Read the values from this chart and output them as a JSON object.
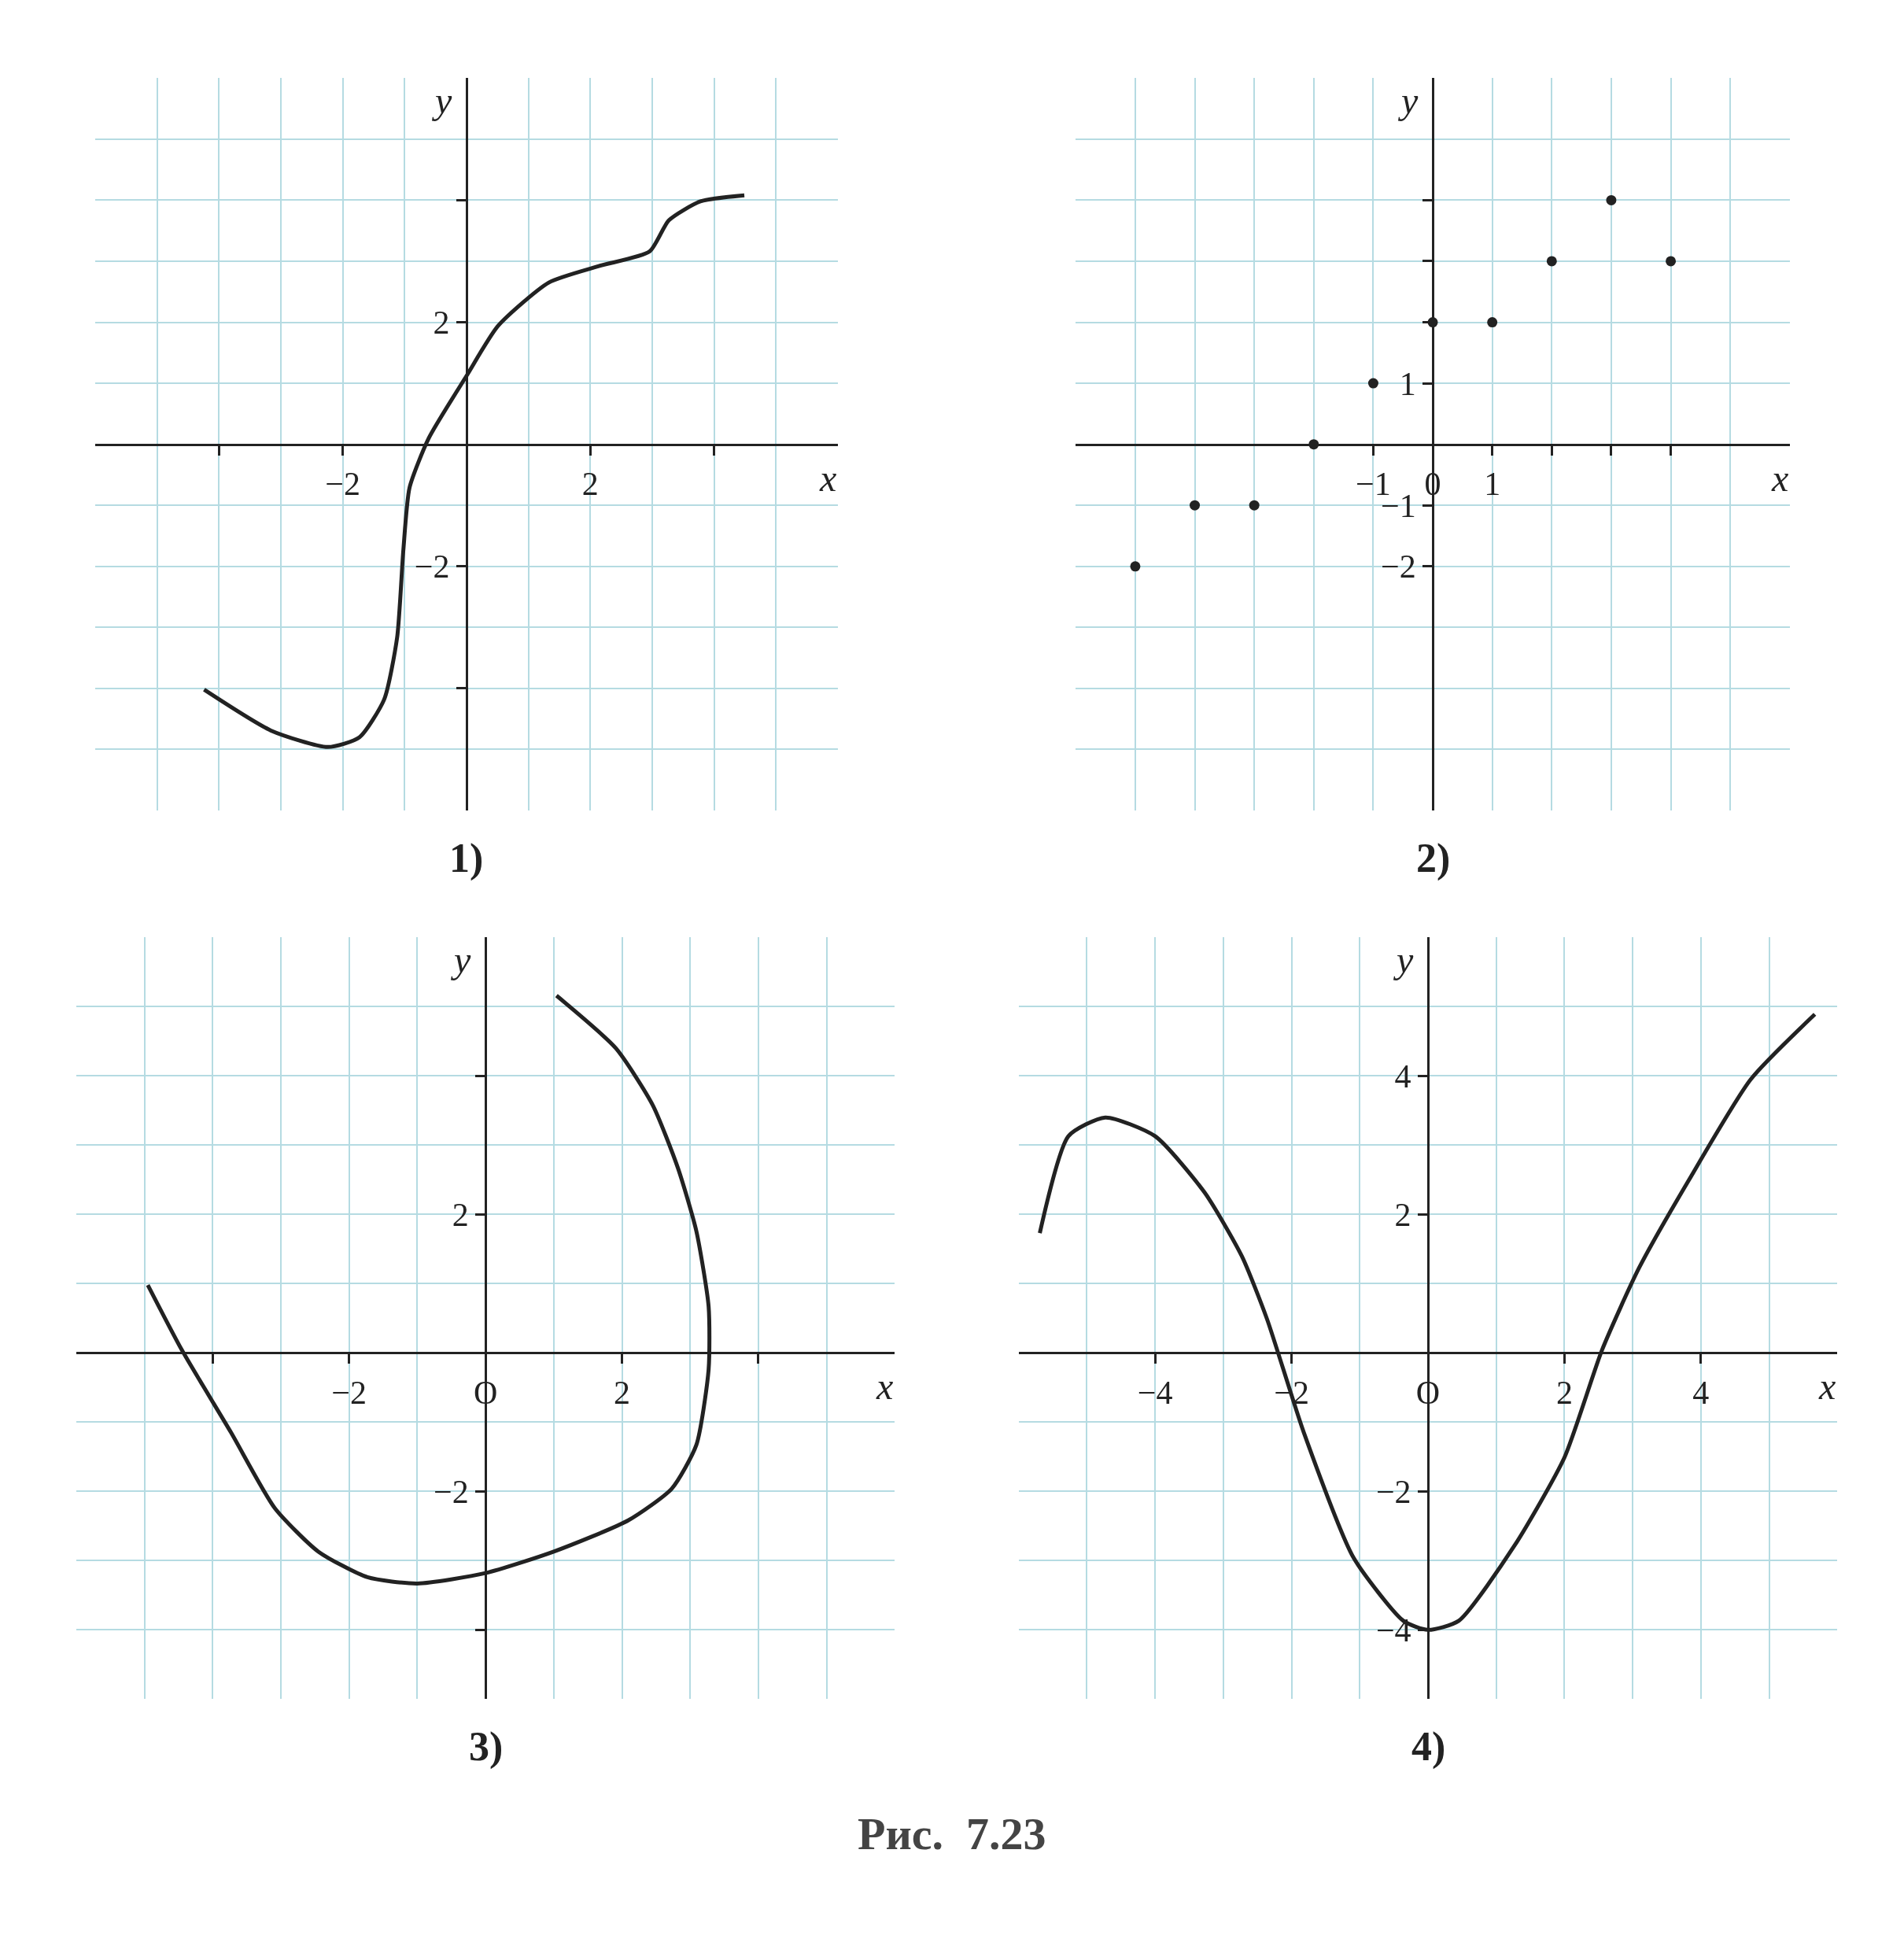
{
  "chart_data": [
    {
      "type": "line",
      "xlabel": "x",
      "ylabel": "y",
      "annotations": [
        "1)"
      ],
      "xlim": [
        -6,
        6
      ],
      "ylim": [
        -6,
        6
      ],
      "grid": true,
      "marker": "none",
      "line_style": "solid",
      "xticks": [
        {
          "value": -4,
          "label": null
        },
        -2,
        2,
        {
          "value": 4,
          "label": null
        }
      ],
      "yticks": [
        {
          "value": -4,
          "label": null
        },
        -2,
        2,
        {
          "value": 4,
          "label": null
        }
      ],
      "series": [
        {
          "color": "#222222",
          "x": [
            -4.24,
            -3.16,
            -2.24,
            -1.73,
            -1.33,
            -1.12,
            -1.02,
            -0.92,
            -0.61,
            0,
            0.51,
            1.33,
            2.14,
            2.96,
            3.27,
            3.78,
            4.49
          ],
          "values": [
            -4.02,
            -4.69,
            -4.96,
            -4.8,
            -4.18,
            -3.16,
            -1.73,
            -0.71,
            0.1,
            1.12,
            1.94,
            2.65,
            2.92,
            3.16,
            3.67,
            3.98,
            4.08
          ]
        }
      ]
    },
    {
      "type": "scatter",
      "xlabel": "x",
      "ylabel": "y",
      "annotations": [
        "2)"
      ],
      "xlim": [
        -6,
        6
      ],
      "ylim": [
        -6,
        6
      ],
      "grid": true,
      "marker": "circle",
      "xticks": [
        -1,
        {
          "value": 0,
          "label": "0"
        },
        1,
        {
          "value": 2,
          "label": null
        },
        {
          "value": 3,
          "label": null
        },
        {
          "value": 4,
          "label": null
        }
      ],
      "yticks": [
        -2,
        -1,
        1,
        {
          "value": 2,
          "label": null
        },
        {
          "value": 3,
          "label": null
        },
        {
          "value": 4,
          "label": null
        }
      ],
      "series": [
        {
          "color": "#222222",
          "x": [
            -5,
            -4,
            -3,
            -2,
            -1,
            0,
            1,
            2,
            3,
            4
          ],
          "values": [
            -2,
            -1,
            -1,
            0,
            1,
            2,
            2,
            3,
            4,
            3
          ]
        }
      ]
    },
    {
      "type": "line",
      "xlabel": "x",
      "ylabel": "y",
      "annotations": [
        "3)"
      ],
      "xlim": [
        -6,
        6
      ],
      "ylim": [
        -5,
        6
      ],
      "grid": true,
      "marker": "none",
      "line_style": "solid",
      "xticks": [
        {
          "value": -4,
          "label": null
        },
        -2,
        {
          "value": 0,
          "label": "O"
        },
        2,
        {
          "value": 4,
          "label": null
        }
      ],
      "yticks": [
        {
          "value": -4,
          "label": null
        },
        -2,
        2,
        {
          "value": 4,
          "label": null
        }
      ],
      "series": [
        {
          "color": "#222222",
          "x": [
            -4.95,
            -4.45,
            -3.73,
            -3.09,
            -2.45,
            -1.73,
            -1,
            0,
            1,
            2.09,
            2.73,
            3.09,
            3.27,
            3.27,
            3.09,
            2.82,
            2.45,
            1.91,
            1.04
          ],
          "values": [
            0.98,
            0.04,
            -1.15,
            -2.24,
            -2.87,
            -3.24,
            -3.33,
            -3.18,
            -2.87,
            -2.42,
            -1.96,
            -1.33,
            -0.24,
            0.67,
            1.76,
            2.67,
            3.58,
            4.4,
            5.16
          ]
        }
      ]
    },
    {
      "type": "line",
      "xlabel": "x",
      "ylabel": "y",
      "annotations": [
        "4)",
        "Рис.  7.23"
      ],
      "xlim": [
        -6,
        6
      ],
      "ylim": [
        -5,
        6
      ],
      "grid": true,
      "marker": "none",
      "line_style": "solid",
      "xticks": [
        -4,
        -2,
        {
          "value": 0,
          "label": "O"
        },
        2,
        4
      ],
      "yticks": [
        -4,
        -2,
        2,
        4
      ],
      "series": [
        {
          "color": "#222222",
          "x": [
            -5.69,
            -5.27,
            -4.73,
            -4,
            -3.27,
            -2.73,
            -2.36,
            -1.82,
            -1.09,
            -0.36,
            0,
            0.45,
            1.27,
            2,
            2.55,
            3.09,
            3.82,
            4.73,
            5.67
          ],
          "values": [
            1.73,
            3.13,
            3.4,
            3.13,
            2.31,
            1.4,
            0.49,
            -1.15,
            -2.96,
            -3.87,
            -4,
            -3.87,
            -2.78,
            -1.51,
            0.04,
            1.22,
            2.49,
            3.95,
            4.89
          ]
        }
      ]
    }
  ]
}
